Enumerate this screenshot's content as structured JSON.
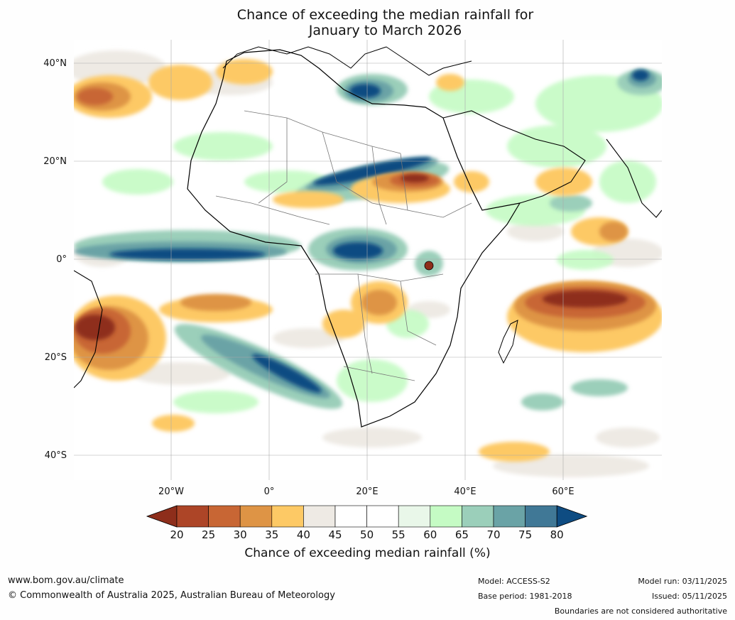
{
  "map": {
    "title_line1": "Chance of exceeding the median rainfall for",
    "title_line2": "January to March 2026",
    "lat_labels": [
      "40°N",
      "20°N",
      "0°",
      "20°S",
      "40°S"
    ],
    "lon_labels": [
      "20°W",
      "0°",
      "20°E",
      "40°E",
      "60°E"
    ]
  },
  "colorbar": {
    "ticks": [
      "20",
      "25",
      "30",
      "35",
      "40",
      "45",
      "50",
      "55",
      "60",
      "65",
      "70",
      "75",
      "80"
    ],
    "label": "Chance of exceeding median rainfall (%)",
    "colors": [
      "#8e2e1b",
      "#ad4527",
      "#c86634",
      "#de9445",
      "#fdc965",
      "#eeeae4",
      "#ffffff",
      "#ffffff",
      "#e9f7e9",
      "#c5fbc4",
      "#9bcfba",
      "#6aa3a6",
      "#407896",
      "#0e4c82"
    ]
  },
  "footer": {
    "website": "www.bom.gov.au/climate",
    "copyright": "© Commonwealth of Australia 2025, Australian Bureau of Meteorology",
    "model": "Model: ACCESS-S2",
    "base_period": "Base period: 1981-2018",
    "model_run": "Model run: 03/11/2025",
    "issued": "Issued: 05/11/2025",
    "disclaimer": "Boundaries are not considered authoritative"
  }
}
